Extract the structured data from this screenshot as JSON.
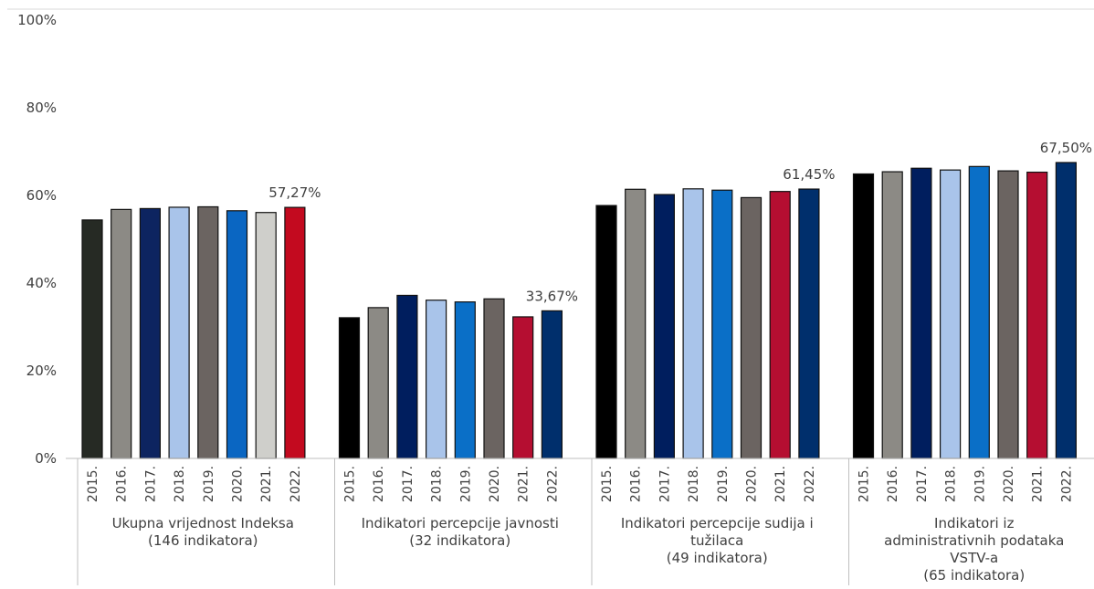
{
  "chart_data": {
    "type": "bar",
    "ylim": [
      0,
      100
    ],
    "yticks": [
      "0%",
      "20%",
      "40%",
      "60%",
      "80%",
      "100%"
    ],
    "grid": false,
    "legend": "none",
    "years": [
      "2015.",
      "2016.",
      "2017.",
      "2018.",
      "2019.",
      "2020.",
      "2021.",
      "2022."
    ],
    "groups": [
      {
        "label_lines": [
          "Ukupna vrijednost Indeksa",
          "(146 indikatora)"
        ],
        "values": [
          54.4,
          56.8,
          57.0,
          57.3,
          57.4,
          56.5,
          56.1,
          57.27
        ],
        "colors": [
          "#262a24",
          "#8c8a85",
          "#0d2460",
          "#a9c4ea",
          "#6b6461",
          "#0a66c2",
          "#cfcfcb",
          "#c30a1f"
        ],
        "value_label": "57,27%"
      },
      {
        "label_lines": [
          "Indikatori percepcije javnosti",
          "(32 indikatora)"
        ],
        "values": [
          32.1,
          34.4,
          37.2,
          36.1,
          35.7,
          36.4,
          32.3,
          33.67
        ],
        "colors": [
          "#000000",
          "#8c8a85",
          "#001e5e",
          "#a9c4ea",
          "#0a6fc7",
          "#6b6461",
          "#b50e31",
          "#002f6c"
        ],
        "value_label": "33,67%"
      },
      {
        "label_lines": [
          "Indikatori percepcije sudija i",
          "tužilaca",
          "(49 indikatora)"
        ],
        "values": [
          57.7,
          61.4,
          60.2,
          61.5,
          61.2,
          59.5,
          60.9,
          61.45
        ],
        "colors": [
          "#000000",
          "#8c8a85",
          "#001e5e",
          "#a9c4ea",
          "#0a6fc7",
          "#6b6461",
          "#b50e31",
          "#002f6c"
        ],
        "value_label": "61,45%"
      },
      {
        "label_lines": [
          "Indikatori iz",
          "administrativnih podataka",
          "VSTV-a",
          "(65 indikatora)"
        ],
        "values": [
          64.9,
          65.4,
          66.2,
          65.8,
          66.6,
          65.6,
          65.3,
          67.5
        ],
        "colors": [
          "#000000",
          "#8c8a85",
          "#001e5e",
          "#a9c4ea",
          "#0a6fc7",
          "#6b6461",
          "#b50e31",
          "#002f6c"
        ],
        "value_label": "67,50%"
      }
    ]
  }
}
